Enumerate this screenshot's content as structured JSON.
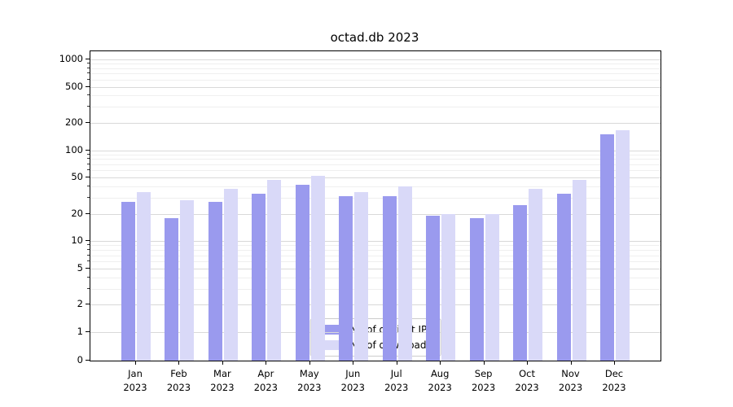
{
  "chart_data": {
    "type": "bar",
    "title": "octad.db 2023",
    "x_tick_months": [
      "Jan",
      "Feb",
      "Mar",
      "Apr",
      "May",
      "Jun",
      "Jul",
      "Aug",
      "Sep",
      "Oct",
      "Nov",
      "Dec"
    ],
    "x_tick_year": "2023",
    "series": [
      {
        "name": "Nb of distinct IPs",
        "color": "#9a9aee",
        "values": [
          27,
          18,
          27,
          33,
          42,
          31,
          31,
          19,
          18,
          25,
          33,
          150
        ]
      },
      {
        "name": "Nb of downloads",
        "color": "#d9d9f8",
        "values": [
          35,
          28,
          38,
          47,
          52,
          35,
          40,
          20,
          20,
          38,
          47,
          165
        ]
      }
    ],
    "yscale": "symlog",
    "yticks": [
      0,
      1,
      2,
      5,
      10,
      20,
      50,
      100,
      200,
      500,
      1000
    ],
    "minor_yticks": [
      3,
      4,
      6,
      7,
      8,
      9,
      30,
      40,
      60,
      70,
      80,
      90,
      300,
      400,
      600,
      700,
      800,
      900
    ],
    "ylim": [
      0,
      1200
    ],
    "grid": true,
    "legend_position": "lower center"
  },
  "colors": {
    "grid_major": "#d9d9d9",
    "grid_minor": "#efefef",
    "axis": "#000000",
    "background": "#ffffff"
  }
}
